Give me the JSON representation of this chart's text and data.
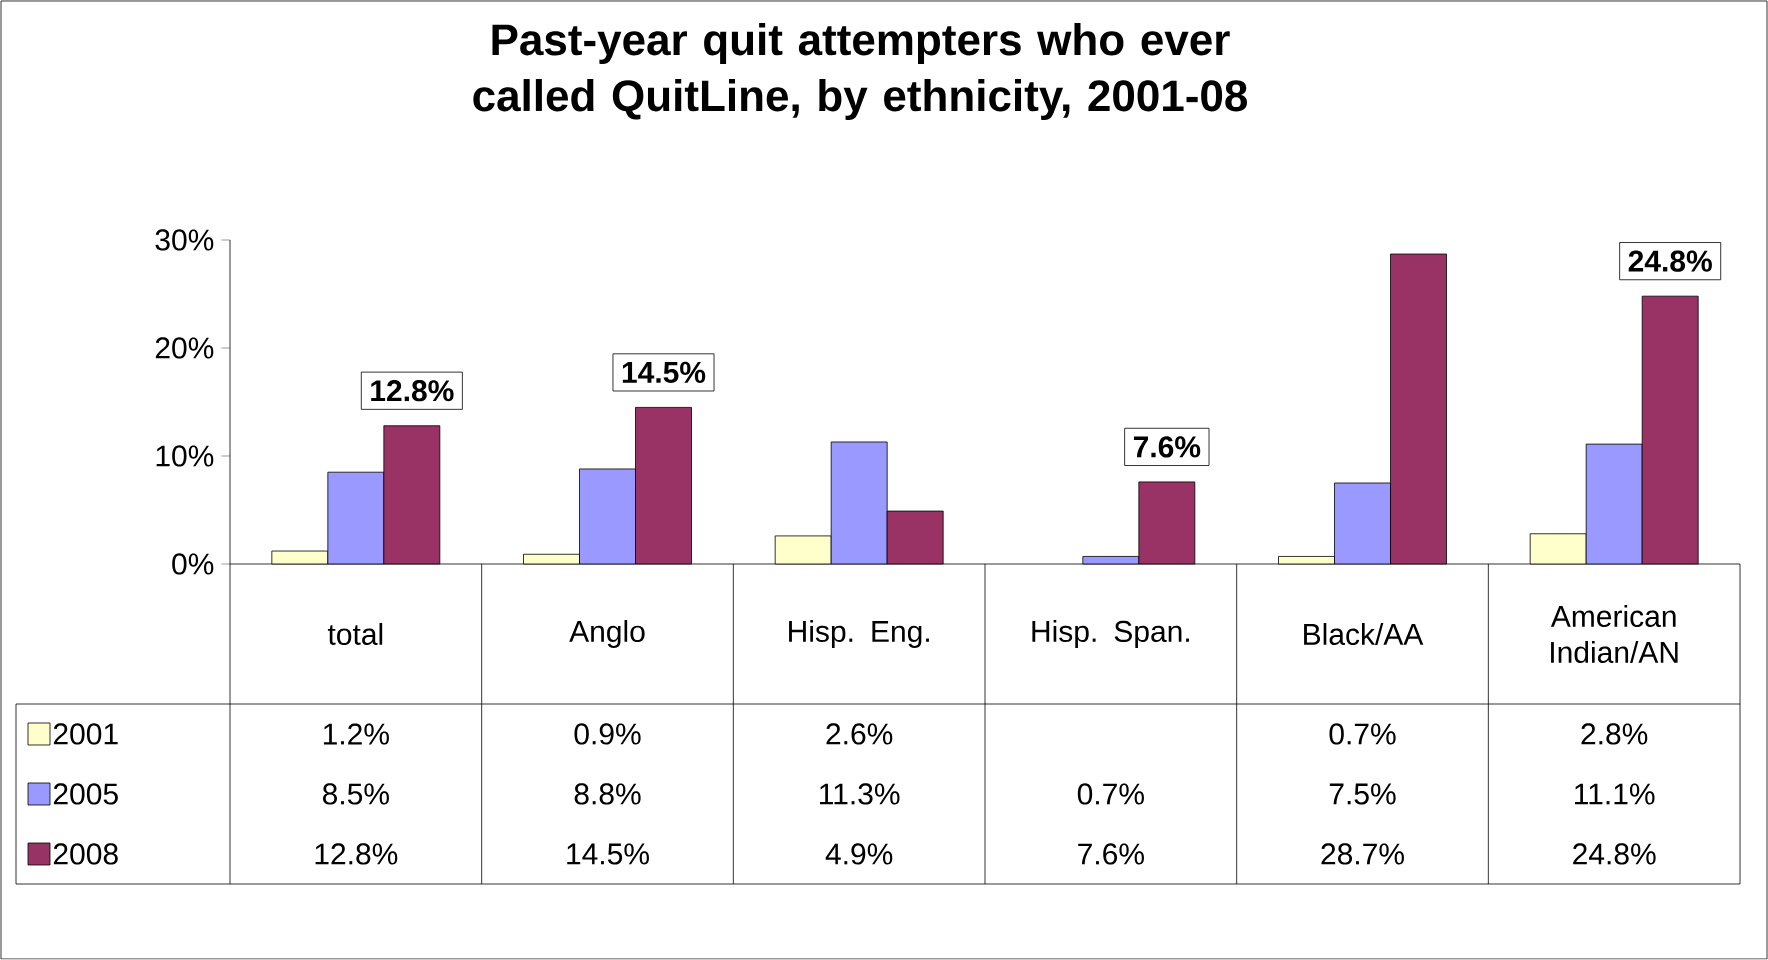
{
  "chart_data": {
    "type": "bar",
    "title": "Past-year quit attempters who ever called QuitLine, by ethnicity, 2001-08",
    "categories": [
      "total",
      "Anglo",
      "Hisp. Eng.",
      "Hisp. Span.",
      "Black/AA",
      "American Indian/AN"
    ],
    "series": [
      {
        "name": "2001",
        "color": "#ffffcc",
        "values": [
          1.2,
          0.9,
          2.6,
          null,
          0.7,
          2.8
        ],
        "value_labels": [
          "1.2%",
          "0.9%",
          "2.6%",
          null,
          "0.7%",
          "2.8%"
        ]
      },
      {
        "name": "2005",
        "color": "#9999ff",
        "values": [
          8.5,
          8.8,
          11.3,
          0.7,
          7.5,
          11.1
        ],
        "value_labels": [
          "8.5%",
          "8.8%",
          "11.3%",
          "0.7%",
          "7.5%",
          "11.1%"
        ]
      },
      {
        "name": "2008",
        "color": "#993366",
        "values": [
          12.8,
          14.5,
          4.9,
          7.6,
          28.7,
          24.8
        ],
        "value_labels": [
          "12.8%",
          "14.5%",
          "4.9%",
          "7.6%",
          "28.7%",
          "24.8%"
        ]
      }
    ],
    "ylim": [
      0,
      30
    ],
    "yticks": [
      {
        "value": 0,
        "label": "0%"
      },
      {
        "value": 10,
        "label": "10%"
      },
      {
        "value": 20,
        "label": "20%"
      },
      {
        "value": 30,
        "label": "30%"
      }
    ],
    "legend": "left",
    "annotations": [
      "12.8%",
      "14.5%",
      "7.6%",
      "24.8%"
    ]
  }
}
